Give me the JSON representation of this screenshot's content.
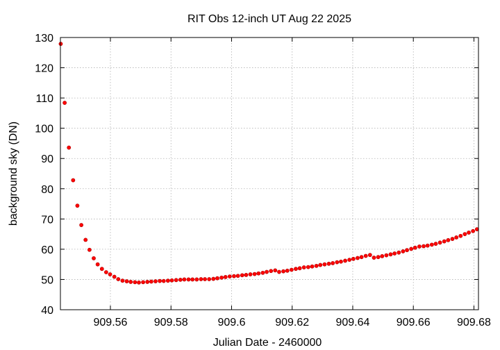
{
  "chart_data": {
    "type": "scatter",
    "title": "RIT Obs 12-inch UT Aug 22 2025",
    "xlabel": "Julian Date - 2460000",
    "ylabel": "background sky (DN)",
    "xlim": [
      909.5435,
      909.6815
    ],
    "ylim": [
      40,
      130
    ],
    "xticks": [
      "909.56",
      "909.58",
      "909.6",
      "909.62",
      "909.64",
      "909.66",
      "909.68"
    ],
    "yticks": [
      "40",
      "50",
      "60",
      "70",
      "80",
      "90",
      "100",
      "110",
      "120",
      "130"
    ],
    "grid": true,
    "marker_color": "#ff0000",
    "series": [
      {
        "points": [
          [
            909.5436,
            127.9
          ],
          [
            909.5449,
            108.4
          ],
          [
            909.5463,
            93.6
          ],
          [
            909.5477,
            82.8
          ],
          [
            909.5491,
            74.4
          ],
          [
            909.5504,
            68.0
          ],
          [
            909.5518,
            63.1
          ],
          [
            909.5531,
            59.8
          ],
          [
            909.5545,
            57.0
          ],
          [
            909.5558,
            55.0
          ],
          [
            909.5572,
            53.5
          ],
          [
            909.5586,
            52.4
          ],
          [
            909.5599,
            51.7
          ],
          [
            909.5613,
            50.9
          ],
          [
            909.5626,
            50.1
          ],
          [
            909.564,
            49.6
          ],
          [
            909.5654,
            49.4
          ],
          [
            909.5667,
            49.2
          ],
          [
            909.5681,
            49.1
          ],
          [
            909.5694,
            49.0
          ],
          [
            909.5708,
            49.1
          ],
          [
            909.5722,
            49.2
          ],
          [
            909.5735,
            49.3
          ],
          [
            909.5749,
            49.4
          ],
          [
            909.5763,
            49.5
          ],
          [
            909.5776,
            49.5
          ],
          [
            909.579,
            49.6
          ],
          [
            909.5803,
            49.7
          ],
          [
            909.5817,
            49.8
          ],
          [
            909.5831,
            49.9
          ],
          [
            909.5844,
            50.0
          ],
          [
            909.5858,
            50.0
          ],
          [
            909.5871,
            50.0
          ],
          [
            909.5885,
            50.0
          ],
          [
            909.5899,
            50.1
          ],
          [
            909.5912,
            50.1
          ],
          [
            909.5926,
            50.1
          ],
          [
            909.594,
            50.2
          ],
          [
            909.5953,
            50.4
          ],
          [
            909.5967,
            50.6
          ],
          [
            909.598,
            50.8
          ],
          [
            909.5994,
            51.0
          ],
          [
            909.6008,
            51.1
          ],
          [
            909.6021,
            51.2
          ],
          [
            909.6035,
            51.4
          ],
          [
            909.6048,
            51.5
          ],
          [
            909.6062,
            51.7
          ],
          [
            909.6076,
            51.8
          ],
          [
            909.6089,
            52.0
          ],
          [
            909.6103,
            52.2
          ],
          [
            909.6116,
            52.5
          ],
          [
            909.613,
            52.8
          ],
          [
            909.6144,
            53.0
          ],
          [
            909.6157,
            52.5
          ],
          [
            909.6171,
            52.7
          ],
          [
            909.6184,
            52.9
          ],
          [
            909.6198,
            53.2
          ],
          [
            909.6212,
            53.5
          ],
          [
            909.6225,
            53.7
          ],
          [
            909.6239,
            54.0
          ],
          [
            909.6253,
            54.1
          ],
          [
            909.6266,
            54.3
          ],
          [
            909.628,
            54.5
          ],
          [
            909.6293,
            54.8
          ],
          [
            909.6307,
            55.0
          ],
          [
            909.6321,
            55.2
          ],
          [
            909.6334,
            55.4
          ],
          [
            909.6348,
            55.7
          ],
          [
            909.6361,
            55.9
          ],
          [
            909.6375,
            56.2
          ],
          [
            909.6389,
            56.5
          ],
          [
            909.6402,
            56.8
          ],
          [
            909.6416,
            57.1
          ],
          [
            909.6429,
            57.4
          ],
          [
            909.6443,
            57.8
          ],
          [
            909.6457,
            58.1
          ],
          [
            909.647,
            57.2
          ],
          [
            909.6484,
            57.4
          ],
          [
            909.6497,
            57.7
          ],
          [
            909.6511,
            58.0
          ],
          [
            909.6525,
            58.3
          ],
          [
            909.6538,
            58.6
          ],
          [
            909.6552,
            58.9
          ],
          [
            909.6566,
            59.3
          ],
          [
            909.6579,
            59.7
          ],
          [
            909.6593,
            60.1
          ],
          [
            909.6606,
            60.5
          ],
          [
            909.662,
            60.9
          ],
          [
            909.6634,
            61.0
          ],
          [
            909.6647,
            61.2
          ],
          [
            909.6661,
            61.5
          ],
          [
            909.6674,
            61.8
          ],
          [
            909.6688,
            62.2
          ],
          [
            909.6702,
            62.6
          ],
          [
            909.6715,
            63.0
          ],
          [
            909.6729,
            63.4
          ],
          [
            909.6742,
            63.9
          ],
          [
            909.6756,
            64.4
          ],
          [
            909.677,
            65.0
          ],
          [
            909.6783,
            65.5
          ],
          [
            909.6797,
            66.0
          ],
          [
            909.681,
            66.6
          ]
        ]
      }
    ]
  }
}
